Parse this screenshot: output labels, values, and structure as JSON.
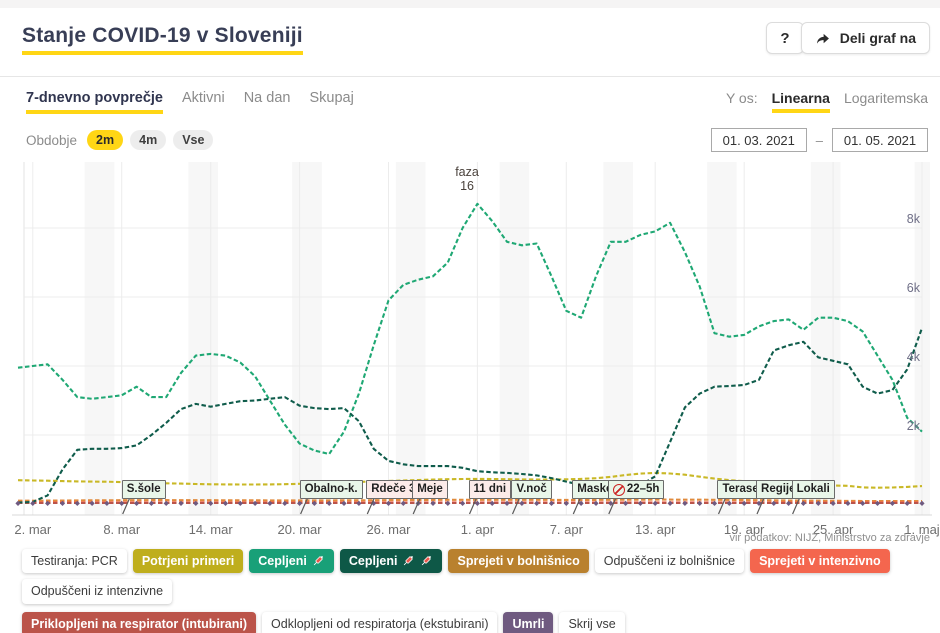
{
  "header": {
    "title": "Stanje COVID-19 v Sloveniji",
    "help_label": "?",
    "share_label": "Deli graf na"
  },
  "controls": {
    "tabs": [
      {
        "label": "7-dnevno povprečje",
        "active": true
      },
      {
        "label": "Aktivni",
        "active": false
      },
      {
        "label": "Na dan",
        "active": false
      },
      {
        "label": "Skupaj",
        "active": false
      }
    ],
    "yaxis_label": "Y os:",
    "yaxis_options": [
      {
        "label": "Linearna",
        "active": true
      },
      {
        "label": "Logaritemska",
        "active": false
      }
    ],
    "period_label": "Obdobje",
    "period_options": [
      {
        "label": "2m",
        "active": true
      },
      {
        "label": "4m",
        "active": false
      },
      {
        "label": "Vse",
        "active": false
      }
    ],
    "date_from": "01. 03. 2021",
    "date_separator": "–",
    "date_to": "01. 05. 2021"
  },
  "chart_data": {
    "type": "line",
    "x_start_date": "1. mar 2021",
    "x_tick_labels": [
      "2. mar",
      "8. mar",
      "14. mar",
      "20. mar",
      "26. mar",
      "1. apr",
      "7. apr",
      "13. apr",
      "19. apr",
      "25. apr",
      "1. maj"
    ],
    "x_ticks": [
      {
        "i": 1,
        "label": "2. mar"
      },
      {
        "i": 7,
        "label": "8. mar"
      },
      {
        "i": 13,
        "label": "14. mar"
      },
      {
        "i": 19,
        "label": "20. mar"
      },
      {
        "i": 25,
        "label": "26. mar"
      },
      {
        "i": 31,
        "label": "1. apr"
      },
      {
        "i": 37,
        "label": "7. apr"
      },
      {
        "i": 43,
        "label": "13. apr"
      },
      {
        "i": 49,
        "label": "19. apr"
      },
      {
        "i": 55,
        "label": "25. apr"
      },
      {
        "i": 61,
        "label": "1. maj"
      }
    ],
    "y_ticks": [
      {
        "value": 2000,
        "label": "2k"
      },
      {
        "value": 4000,
        "label": "4k"
      },
      {
        "value": 6000,
        "label": "6k"
      },
      {
        "value": 8000,
        "label": "8k"
      }
    ],
    "ylim": [
      0,
      9000
    ],
    "weekend_saturday_indices": [
      5,
      12,
      19,
      26,
      33,
      40,
      47,
      54,
      61
    ],
    "annotation": {
      "lines": [
        "faza",
        "16"
      ],
      "day_index": 30.3
    },
    "series": [
      {
        "name": "Sprejeti v bolnišnico",
        "color": "#e08a3c",
        "values": [
          95,
          96,
          98,
          100,
          103,
          106,
          108,
          110,
          111,
          112,
          112,
          111,
          110,
          109,
          108,
          107,
          106,
          105,
          104,
          104,
          104,
          105,
          106,
          108,
          110,
          112,
          115,
          117,
          119,
          121,
          122,
          123,
          123,
          123,
          122,
          121,
          120,
          119,
          119,
          120,
          122,
          124,
          126,
          127,
          127,
          126,
          124,
          121,
          118,
          114,
          110,
          106,
          102,
          98,
          95,
          92,
          90,
          88,
          87,
          86,
          85,
          85
        ]
      },
      {
        "name": "Sprejeti v intenzivno",
        "color": "#f4664e",
        "constant": 45
      },
      {
        "name": "Priklopljeni na respirator (intubirani)",
        "color": "#bb544a",
        "constant": 30
      },
      {
        "name": "Potrjeni primeri",
        "color": "#c9b826",
        "values": [
          690,
          680,
          675,
          665,
          655,
          650,
          645,
          635,
          625,
          615,
          600,
          590,
          580,
          572,
          567,
          565,
          565,
          568,
          575,
          585,
          598,
          610,
          625,
          640,
          655,
          668,
          680,
          695,
          708,
          718,
          725,
          728,
          726,
          720,
          714,
          710,
          710,
          715,
          728,
          748,
          785,
          840,
          880,
          900,
          885,
          848,
          790,
          735,
          693,
          662,
          633,
          607,
          583,
          562,
          548,
          537,
          527,
          482,
          472,
          477,
          497,
          520
        ]
      },
      {
        "name": "Cepljeni (1. odmerek)",
        "color": "#1fa874",
        "values": [
          3950,
          4000,
          4050,
          3600,
          3100,
          3050,
          3100,
          3150,
          3400,
          3100,
          3100,
          3800,
          4300,
          4350,
          4300,
          4100,
          3700,
          3000,
          2300,
          1750,
          1550,
          1450,
          2100,
          3200,
          4600,
          5900,
          6350,
          6500,
          6600,
          7000,
          8000,
          8700,
          8200,
          7600,
          7500,
          7550,
          6600,
          5600,
          5400,
          6600,
          7600,
          7600,
          7800,
          7900,
          8150,
          7300,
          6300,
          4950,
          4850,
          4900,
          5150,
          5300,
          5350,
          5050,
          5400,
          5400,
          5300,
          5000,
          4300,
          3600,
          2500,
          2100
        ]
      },
      {
        "name": "Cepljeni (2. odmerek)",
        "color": "#0f5c4b",
        "values": [
          40,
          60,
          250,
          1000,
          1570,
          1600,
          1600,
          1620,
          1700,
          2000,
          2350,
          2750,
          2900,
          2820,
          2900,
          2980,
          3000,
          3050,
          3100,
          2850,
          2780,
          2750,
          2780,
          2400,
          1600,
          1250,
          1150,
          1100,
          1100,
          1100,
          1050,
          950,
          920,
          900,
          870,
          830,
          750,
          650,
          550,
          520,
          500,
          500,
          550,
          800,
          1800,
          2800,
          3200,
          3400,
          3420,
          3450,
          3600,
          4450,
          4600,
          4700,
          4250,
          4150,
          4050,
          3400,
          3200,
          3300,
          3900,
          5100
        ]
      },
      {
        "name": "Umrli",
        "color": "#6f5a80",
        "marker": "diamond",
        "constant": 16
      }
    ],
    "events": [
      {
        "label": "S.šole",
        "day_index": 7,
        "type": "green"
      },
      {
        "label": "Obalno-k.",
        "day_index": 19,
        "type": "green"
      },
      {
        "label": "Rdeče 3",
        "day_index": 23.5,
        "type": "red"
      },
      {
        "label": "Meje",
        "day_index": 26.6,
        "type": "red"
      },
      {
        "label": "11 dni",
        "day_index": 30.4,
        "type": "red"
      },
      {
        "label": "V.noč",
        "day_index": 33.3,
        "type": "green"
      },
      {
        "label": "Maske",
        "day_index": 37.4,
        "type": "green"
      },
      {
        "label": "22–5h",
        "day_index": 39.8,
        "type": "green",
        "icon": "no-entry"
      },
      {
        "label": "Terase",
        "day_index": 47.2,
        "type": "green"
      },
      {
        "label": "Regije",
        "day_index": 49.8,
        "type": "green"
      },
      {
        "label": "Lokali",
        "day_index": 52.2,
        "type": "green"
      }
    ]
  },
  "source": "vir podatkov: NIJZ, Ministrstvo za zdravje",
  "legend": {
    "rows": [
      [
        {
          "label": "Testiranja: PCR",
          "bg": "#ffffff",
          "active": false
        },
        {
          "label": "Potrjeni primeri",
          "bg": "#bfae1d",
          "active": true
        },
        {
          "label": "Cepljeni",
          "bg": "#19a078",
          "active": true,
          "syringes": 1
        },
        {
          "label": "Cepljeni",
          "bg": "#0e5847",
          "active": true,
          "syringes": 2
        },
        {
          "label": "Sprejeti v bolnišnico",
          "bg": "#b9812e",
          "active": true
        },
        {
          "label": "Odpuščeni iz bolnišnice",
          "bg": "#ffffff",
          "active": false
        },
        {
          "label": "Sprejeti v intenzivno",
          "bg": "#f4664e",
          "active": true
        },
        {
          "label": "Odpuščeni iz intenzivne",
          "bg": "#ffffff",
          "active": false
        }
      ],
      [
        {
          "label": "Priklopljeni na respirator (intubirani)",
          "bg": "#bb544a",
          "active": true
        },
        {
          "label": "Odklopljeni od respiratorja (ekstubirani)",
          "bg": "#ffffff",
          "active": false
        },
        {
          "label": "Umrli",
          "bg": "#6f5a80",
          "active": true
        },
        {
          "label": "Skrij vse",
          "bg": "#ffffff",
          "active": false
        }
      ]
    ]
  },
  "colors": {
    "accent": "#ffd615",
    "weekend_band": "#f7f7f7",
    "gridline": "#ececec",
    "axis": "#d9d9d9"
  }
}
